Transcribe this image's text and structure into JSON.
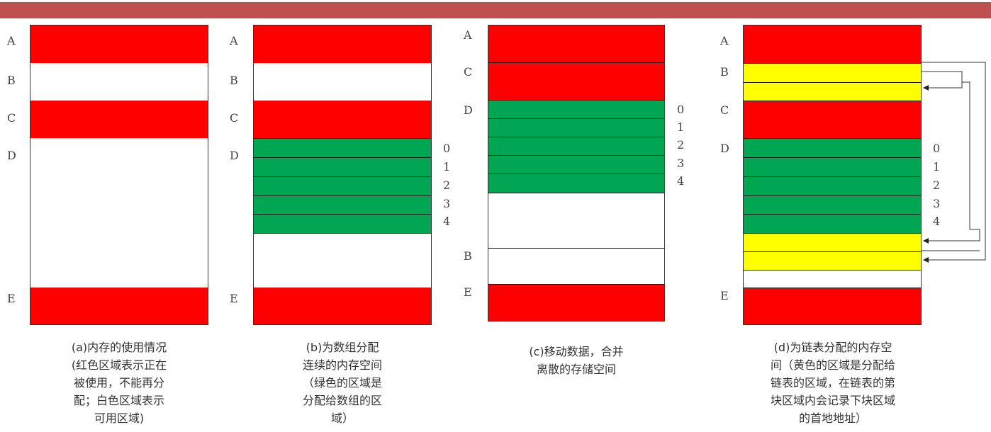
{
  "panels": {
    "a": {
      "labels": [
        "A",
        "B",
        "C",
        "D",
        "E"
      ],
      "caption": "(a)内存的使用情况\n(红色区域表示正在\n被使用，不能再分\n配；白色区域表示\n可用区域)"
    },
    "b": {
      "labels": [
        "A",
        "B",
        "C",
        "D",
        "E"
      ],
      "indices": [
        "0",
        "1",
        "2",
        "3",
        "4"
      ],
      "caption": "(b)为数组分配\n连续的内存空间\n（绿色的区域是\n分配给数组的区\n域）"
    },
    "c": {
      "labels": [
        "A",
        "C",
        "D",
        "B",
        "E"
      ],
      "indices": [
        "0",
        "1",
        "2",
        "3",
        "4"
      ],
      "caption": "(c)移动数据，合并\n离散的存储空间"
    },
    "d": {
      "labels": [
        "A",
        "B",
        "C",
        "D",
        "E"
      ],
      "indices": [
        "0",
        "1",
        "2",
        "3",
        "4"
      ],
      "caption": "(d)为链表分配的内存空\n间（黄色的区域是分配给\n链表的区域，在链表的第\n块区域内会记录下块区域\n的首地地址）"
    }
  },
  "colors": {
    "header": "#c0504d",
    "used": "#ff0000",
    "array": "#00a651",
    "list": "#ffff00"
  }
}
